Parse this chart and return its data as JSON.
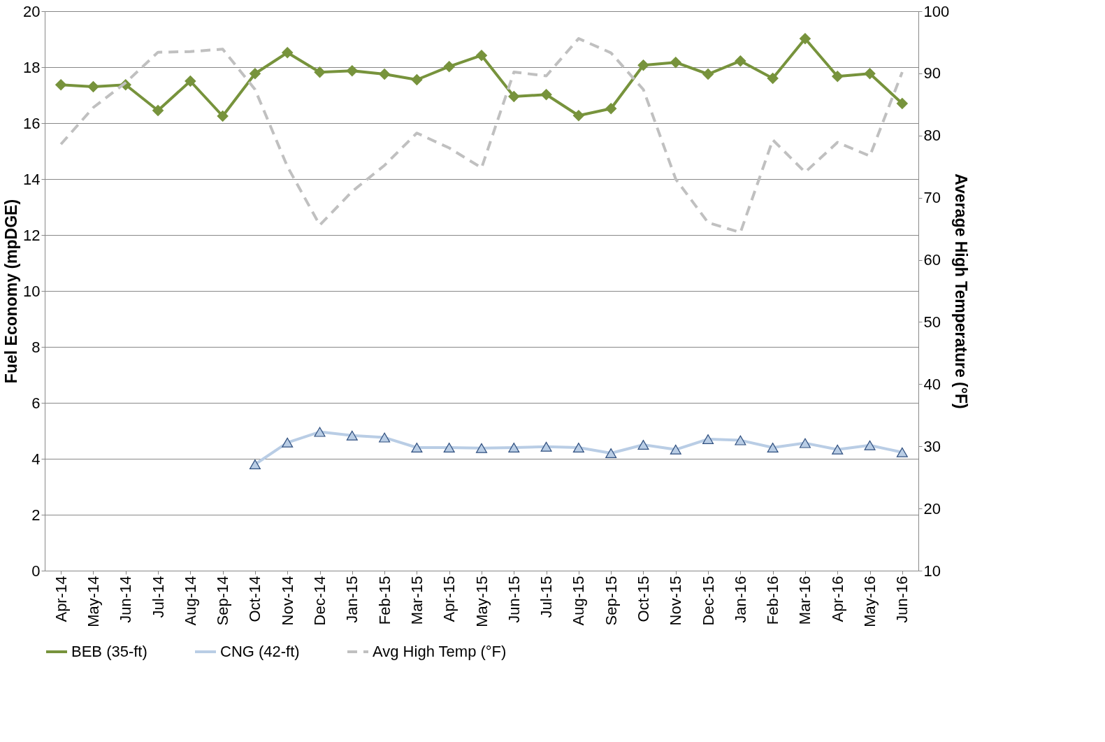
{
  "chart_data": {
    "type": "line",
    "categories": [
      "Apr-14",
      "May-14",
      "Jun-14",
      "Jul-14",
      "Aug-14",
      "Sep-14",
      "Oct-14",
      "Nov-14",
      "Dec-14",
      "Jan-15",
      "Feb-15",
      "Mar-15",
      "Apr-15",
      "May-15",
      "Jun-15",
      "Jul-15",
      "Aug-15",
      "Sep-15",
      "Oct-15",
      "Nov-15",
      "Dec-15",
      "Jan-16",
      "Feb-16",
      "Mar-16",
      "Apr-16",
      "May-16",
      "Jun-16"
    ],
    "ylabel": "Fuel Economy (mpDGE)",
    "y2label": "Average High Temperature (°F)",
    "ylim": [
      0,
      20
    ],
    "yticks": [
      0,
      2,
      4,
      6,
      8,
      10,
      12,
      14,
      16,
      18,
      20
    ],
    "y2lim": [
      10,
      100
    ],
    "y2ticks": [
      10,
      20,
      30,
      40,
      50,
      60,
      70,
      80,
      90,
      100
    ],
    "grid": "y",
    "legend": "bottom",
    "series": [
      {
        "name": "BEB (35-ft)",
        "color": "#77933c",
        "marker": "diamond",
        "line_style": "solid",
        "values": [
          17.37,
          17.3,
          17.37,
          16.45,
          17.5,
          16.25,
          17.77,
          18.52,
          17.82,
          17.87,
          17.75,
          17.55,
          18.02,
          18.42,
          16.95,
          17.02,
          16.27,
          16.52,
          18.07,
          18.17,
          17.75,
          18.22,
          17.6,
          19.02,
          17.67,
          17.77,
          16.7
        ]
      },
      {
        "name": "CNG (42-ft)",
        "color": "#b9cde5",
        "marker": "triangle",
        "line_style": "solid",
        "values": [
          null,
          null,
          null,
          null,
          null,
          null,
          3.8,
          4.58,
          4.96,
          4.83,
          4.76,
          4.4,
          4.4,
          4.38,
          4.4,
          4.43,
          4.4,
          4.2,
          4.5,
          4.33,
          4.7,
          4.66,
          4.4,
          4.56,
          4.33,
          4.48,
          4.23
        ]
      },
      {
        "name": "Avg High Temp (°F)",
        "color": "#c0c0c0",
        "marker": "none",
        "line_style": "dashed",
        "axis": "y2",
        "values": [
          78.6,
          84.5,
          88.5,
          93.4,
          93.5,
          93.9,
          87.4,
          75,
          65.6,
          71,
          75.2,
          80.4,
          78,
          74.8,
          90.2,
          89.6,
          95.6,
          93.3,
          87.4,
          73,
          66,
          64.4,
          79.3,
          74.1,
          78.9,
          76.7,
          90.2
        ]
      }
    ]
  }
}
